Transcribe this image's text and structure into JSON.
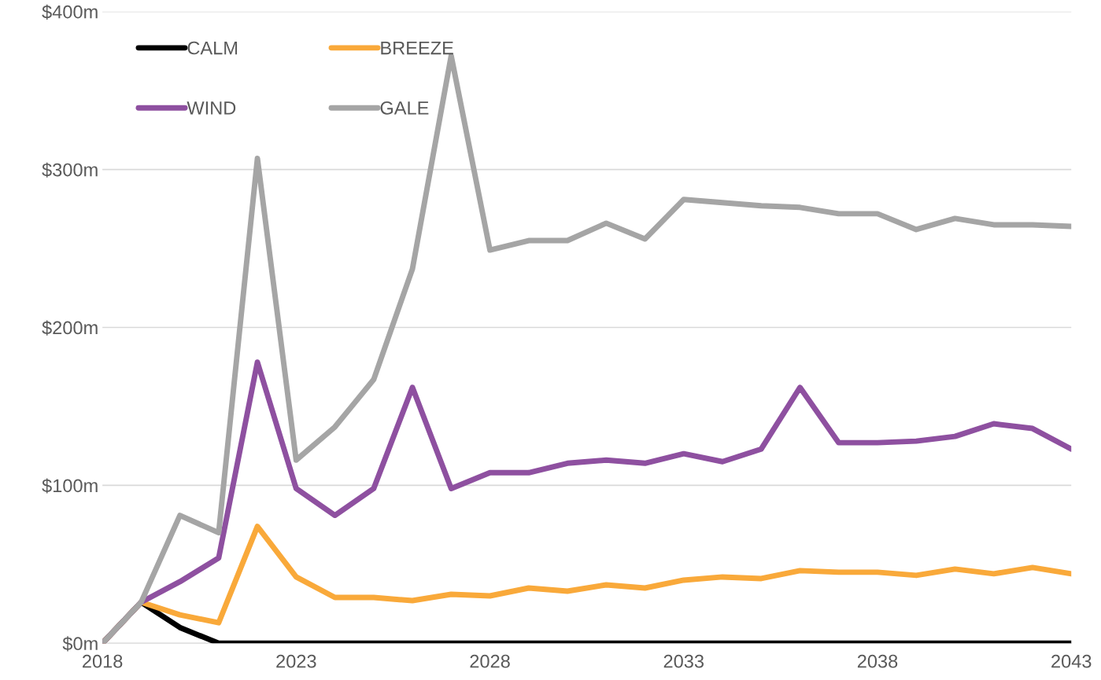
{
  "chart_data": {
    "type": "line",
    "x": [
      2018,
      2019,
      2020,
      2021,
      2022,
      2023,
      2024,
      2025,
      2026,
      2027,
      2028,
      2029,
      2030,
      2031,
      2032,
      2033,
      2034,
      2035,
      2036,
      2037,
      2038,
      2039,
      2040,
      2041,
      2042,
      2043
    ],
    "series": [
      {
        "name": "CALM",
        "color": "#000000",
        "values": [
          0,
          26,
          10,
          0,
          0,
          0,
          0,
          0,
          0,
          0,
          0,
          0,
          0,
          0,
          0,
          0,
          0,
          0,
          0,
          0,
          0,
          0,
          0,
          0,
          0,
          0
        ]
      },
      {
        "name": "BREEZE",
        "color": "#f9a93a",
        "values": [
          0,
          26,
          18,
          13,
          74,
          42,
          29,
          29,
          27,
          31,
          30,
          35,
          33,
          37,
          35,
          40,
          42,
          41,
          46,
          45,
          45,
          43,
          47,
          44,
          48,
          44
        ]
      },
      {
        "name": "WIND",
        "color": "#8e50a0",
        "values": [
          0,
          26,
          39,
          54,
          178,
          98,
          81,
          98,
          162,
          98,
          108,
          108,
          114,
          116,
          114,
          120,
          115,
          123,
          162,
          127,
          127,
          128,
          131,
          139,
          136,
          123
        ]
      },
      {
        "name": "GALE",
        "color": "#a5a5a5",
        "values": [
          0,
          26,
          81,
          70,
          307,
          116,
          137,
          167,
          237,
          372,
          249,
          255,
          255,
          266,
          256,
          281,
          279,
          277,
          276,
          272,
          272,
          262,
          269,
          265,
          265,
          264
        ]
      }
    ],
    "xlim": [
      2018,
      2043
    ],
    "xticks": [
      2018,
      2023,
      2028,
      2033,
      2038,
      2043
    ],
    "ylim": [
      0,
      400
    ],
    "yticks": [
      {
        "value": 0,
        "label": "$0m"
      },
      {
        "value": 100,
        "label": "$100m"
      },
      {
        "value": 200,
        "label": "$200m"
      },
      {
        "value": 300,
        "label": "$300m"
      },
      {
        "value": 400,
        "label": "$400m"
      }
    ],
    "grid": "y",
    "legend": "top left",
    "marker": "none",
    "line_style": "solid"
  }
}
